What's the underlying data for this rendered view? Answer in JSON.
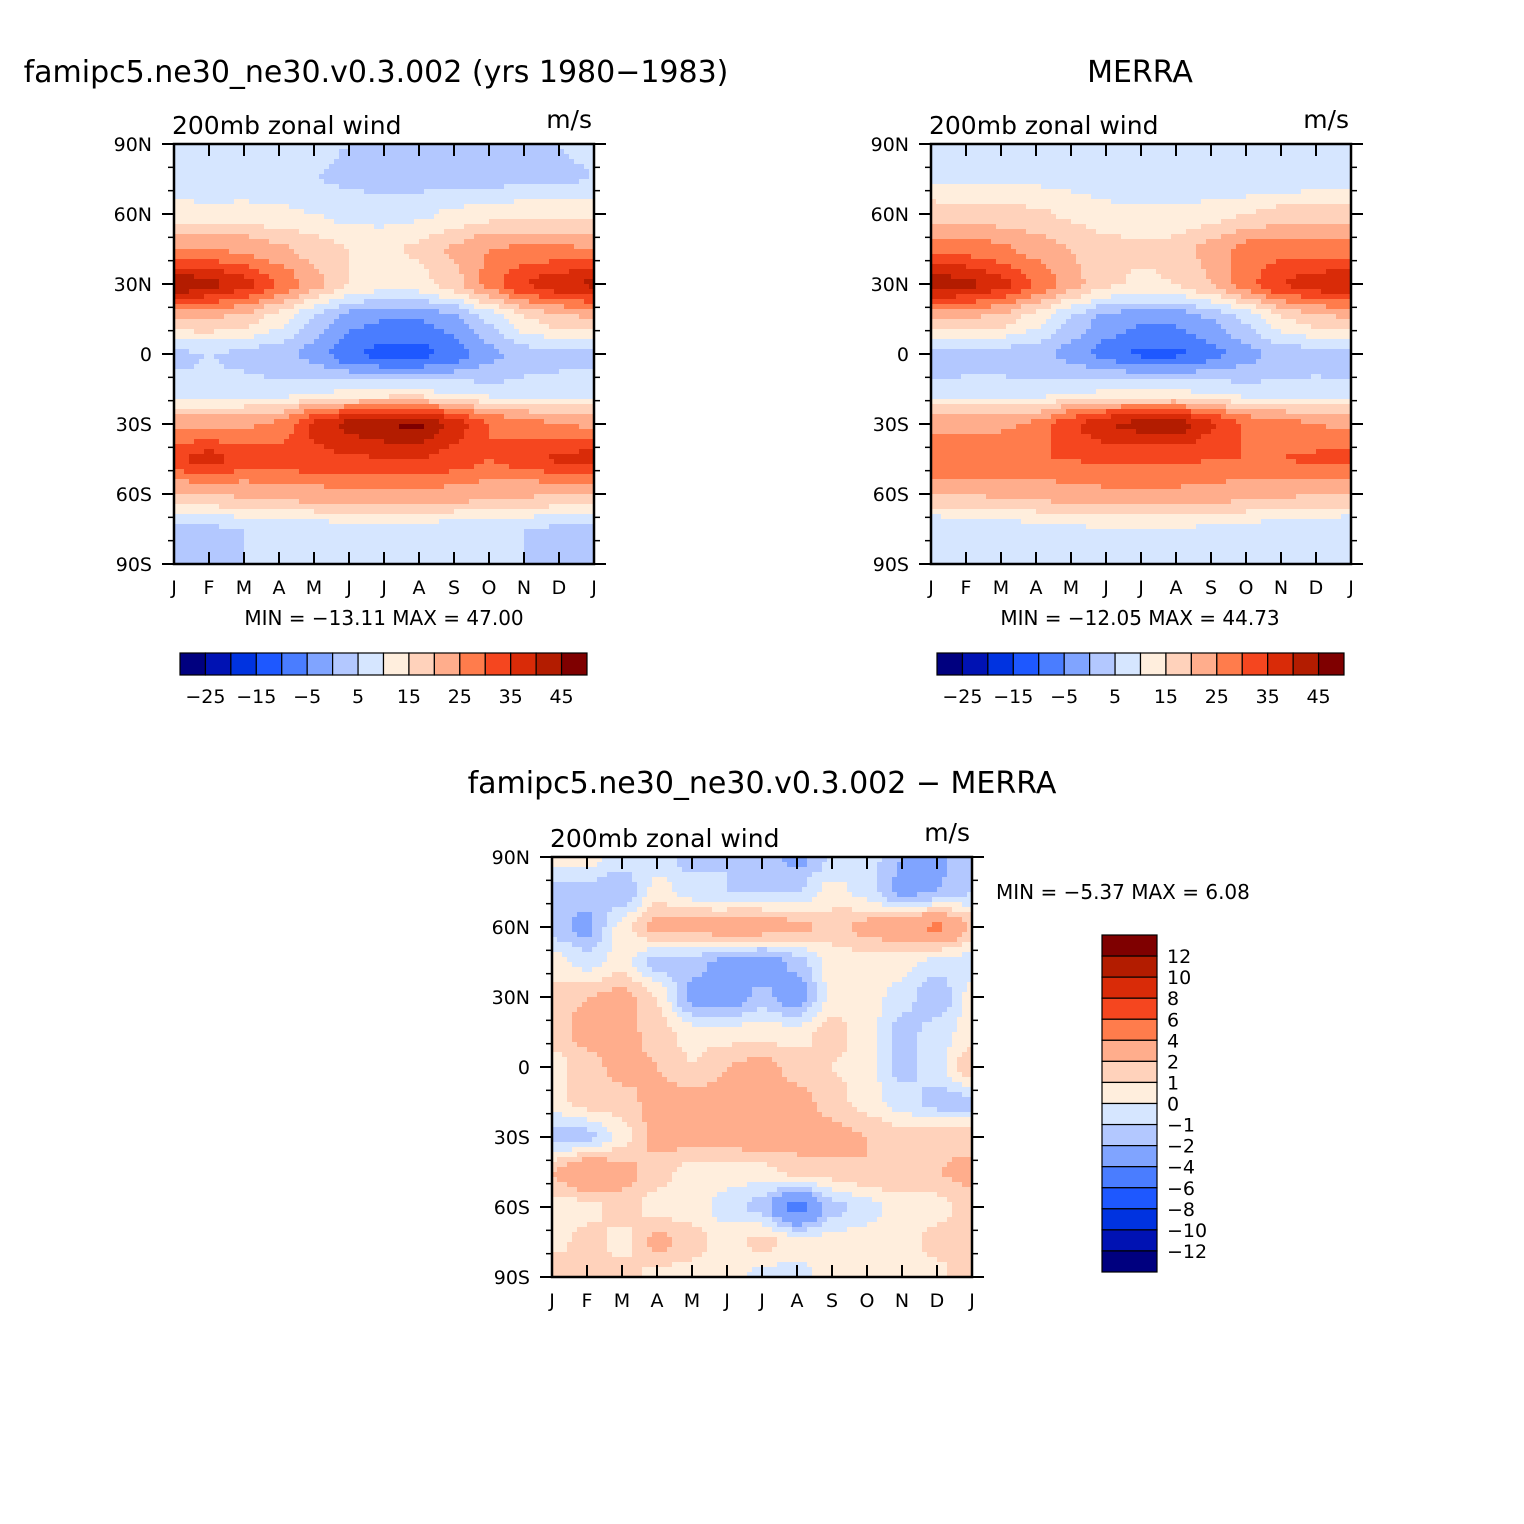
{
  "chart_data": [
    {
      "type": "heatmap",
      "id": "model",
      "title": "famipc5.ne30_ne30.v0.3.002 (yrs 1980-1983)",
      "left_string": "200mb zonal wind",
      "right_string": "m/s",
      "x_ticks": [
        "J",
        "F",
        "M",
        "A",
        "M",
        "J",
        "J",
        "A",
        "S",
        "O",
        "N",
        "D",
        "J"
      ],
      "y_ticks": [
        "90N",
        "60N",
        "30N",
        "0",
        "30S",
        "60S",
        "90S"
      ],
      "ylim": [
        -90,
        90
      ],
      "stats": "MIN = -13.11 MAX =   47.00",
      "colorbar": {
        "orientation": "horizontal",
        "labels": [
          "-25",
          "-15",
          "-5",
          "5",
          "15",
          "25",
          "35",
          "45"
        ]
      },
      "lat_nodes": [
        90,
        75,
        60,
        45,
        30,
        15,
        0,
        -15,
        -30,
        -45,
        -60,
        -75,
        -90
      ],
      "months": [
        "J",
        "F",
        "M",
        "A",
        "M",
        "J",
        "J",
        "A",
        "S",
        "O",
        "N",
        "D",
        "J"
      ],
      "values": [
        [
          6,
          6,
          6,
          6,
          6,
          5,
          5,
          5,
          5,
          5,
          5,
          5,
          6
        ],
        [
          5,
          5,
          6,
          6,
          5,
          4,
          3,
          3,
          3,
          3,
          4,
          4,
          5
        ],
        [
          13,
          12,
          12,
          11,
          10,
          8,
          8,
          9,
          11,
          13,
          13,
          13,
          13
        ],
        [
          25,
          25,
          24,
          21,
          18,
          15,
          14,
          16,
          21,
          25,
          26,
          26,
          25
        ],
        [
          45,
          42,
          37,
          30,
          22,
          15,
          12,
          13,
          18,
          27,
          35,
          39,
          41
        ],
        [
          20,
          20,
          18,
          12,
          4,
          -3,
          -5,
          -5,
          -2,
          6,
          14,
          18,
          20
        ],
        [
          4,
          5,
          4,
          2,
          -2,
          -9,
          -12,
          -12,
          -8,
          -2,
          3,
          4,
          4
        ],
        [
          6,
          6,
          6,
          6,
          8,
          9,
          9,
          9,
          8,
          6,
          6,
          6,
          6
        ],
        [
          24,
          23,
          24,
          26,
          36,
          42,
          45,
          46,
          38,
          30,
          27,
          25,
          24
        ],
        [
          34,
          38,
          33,
          33,
          34,
          34,
          35,
          35,
          33,
          30,
          33,
          36,
          38
        ],
        [
          20,
          20,
          21,
          22,
          23,
          24,
          24,
          24,
          23,
          22,
          21,
          20,
          20
        ],
        [
          3,
          4,
          5,
          6,
          7,
          8,
          8,
          8,
          7,
          6,
          5,
          4,
          3
        ],
        [
          5,
          5,
          5,
          5,
          5,
          5,
          5,
          5,
          5,
          5,
          5,
          5,
          5
        ]
      ]
    },
    {
      "type": "heatmap",
      "id": "obs",
      "title": "MERRA",
      "left_string": "200mb zonal wind",
      "right_string": "m/s",
      "x_ticks": [
        "J",
        "F",
        "M",
        "A",
        "M",
        "J",
        "J",
        "A",
        "S",
        "O",
        "N",
        "D",
        "J"
      ],
      "y_ticks": [
        "90N",
        "60N",
        "30N",
        "0",
        "30S",
        "60S",
        "90S"
      ],
      "ylim": [
        -90,
        90
      ],
      "stats": "MIN = -12.05 MAX =   44.73",
      "colorbar": {
        "orientation": "horizontal",
        "labels": [
          "-25",
          "-15",
          "-5",
          "5",
          "15",
          "25",
          "35",
          "45"
        ]
      },
      "lat_nodes": [
        90,
        75,
        60,
        45,
        30,
        15,
        0,
        -15,
        -30,
        -45,
        -60,
        -75,
        -90
      ],
      "months": [
        "J",
        "F",
        "M",
        "A",
        "M",
        "J",
        "J",
        "A",
        "S",
        "O",
        "N",
        "D",
        "J"
      ],
      "values": [
        [
          6,
          6,
          6,
          6,
          6,
          6,
          6,
          6,
          6,
          6,
          6,
          6,
          6
        ],
        [
          9,
          9,
          9,
          9,
          8,
          6,
          5,
          5,
          5,
          5,
          6,
          7,
          8
        ],
        [
          18,
          17,
          17,
          16,
          14,
          12,
          11,
          11,
          13,
          15,
          17,
          17,
          18
        ],
        [
          28,
          28,
          26,
          23,
          20,
          17,
          16,
          17,
          22,
          27,
          28,
          28,
          28
        ],
        [
          43,
          42,
          37,
          30,
          22,
          16,
          14,
          15,
          20,
          28,
          35,
          38,
          40
        ],
        [
          20,
          20,
          18,
          12,
          4,
          -2,
          -4,
          -4,
          0,
          6,
          14,
          18,
          20
        ],
        [
          2,
          3,
          3,
          2,
          -2,
          -7,
          -11,
          -11,
          -7,
          -2,
          2,
          3,
          2
        ],
        [
          6,
          6,
          6,
          6,
          8,
          9,
          9,
          9,
          8,
          6,
          6,
          6,
          6
        ],
        [
          24,
          24,
          24,
          26,
          34,
          40,
          42,
          43,
          36,
          29,
          27,
          25,
          24
        ],
        [
          30,
          30,
          30,
          30,
          30,
          31,
          31,
          31,
          30,
          30,
          30,
          31,
          32
        ],
        [
          20,
          20,
          21,
          22,
          23,
          24,
          24,
          24,
          23,
          22,
          21,
          20,
          20
        ],
        [
          5,
          6,
          7,
          8,
          9,
          10,
          10,
          10,
          9,
          8,
          7,
          6,
          5
        ],
        [
          5,
          5,
          5,
          5,
          5,
          5,
          5,
          5,
          5,
          5,
          5,
          5,
          5
        ]
      ]
    },
    {
      "type": "heatmap",
      "id": "diff",
      "title": "famipc5.ne30_ne30.v0.3.002 - MERRA",
      "left_string": "200mb zonal wind",
      "right_string": "m/s",
      "x_ticks": [
        "J",
        "F",
        "M",
        "A",
        "M",
        "J",
        "J",
        "A",
        "S",
        "O",
        "N",
        "D",
        "J"
      ],
      "y_ticks": [
        "90N",
        "60N",
        "30N",
        "0",
        "30S",
        "60S",
        "90S"
      ],
      "ylim": [
        -90,
        90
      ],
      "stats": "MIN =   -5.37 MAX =    6.08",
      "colorbar": {
        "orientation": "vertical",
        "labels": [
          "12",
          "10",
          "8",
          "6",
          "4",
          "2",
          "1",
          "0",
          "-1",
          "-2",
          "-4",
          "-6",
          "-8",
          "-10",
          "-12"
        ]
      },
      "lat_nodes": [
        90,
        75,
        60,
        45,
        30,
        15,
        0,
        -15,
        -30,
        -45,
        -60,
        -75,
        -90
      ],
      "months": [
        "J",
        "F",
        "M",
        "A",
        "M",
        "J",
        "J",
        "A",
        "S",
        "O",
        "N",
        "D",
        "J"
      ],
      "values": [
        [
          0.5,
          0.5,
          -0.5,
          -0.5,
          -1.5,
          -1,
          -1.5,
          -2.5,
          -1,
          -0.5,
          -2,
          -2.5,
          -1
        ],
        [
          -1.5,
          -1.5,
          -2,
          0.5,
          -0.5,
          -1,
          -1,
          -1,
          0.5,
          -0.5,
          -2.5,
          -2,
          -1
        ],
        [
          -1.5,
          -2.5,
          0.5,
          2.5,
          2.5,
          3,
          3,
          2.5,
          1.5,
          2.5,
          3,
          4.5,
          2
        ],
        [
          0.5,
          -0.5,
          0.5,
          -1.5,
          -1.5,
          -2.5,
          -3,
          -1.5,
          0.5,
          0.5,
          0.5,
          -0.5,
          -0.5
        ],
        [
          1.5,
          2,
          2.5,
          1,
          -2.5,
          -3,
          -1.5,
          -3,
          0.5,
          0.5,
          -0.5,
          -2,
          0.5
        ],
        [
          1.5,
          2.5,
          2.5,
          1.5,
          0.5,
          0.5,
          0.5,
          0.5,
          1.5,
          0.5,
          -1.5,
          -0.5,
          0.5
        ],
        [
          0.5,
          1.5,
          2.5,
          2,
          1,
          2,
          2.5,
          1.5,
          1,
          0.5,
          -1.5,
          -0.5,
          2
        ],
        [
          0.5,
          1.5,
          1.5,
          2.5,
          2.5,
          2.5,
          2.5,
          2.5,
          1.5,
          0.5,
          -0.5,
          -1.5,
          -1.5
        ],
        [
          -1.5,
          -1.5,
          0.5,
          2.5,
          2.5,
          2.5,
          3,
          2.5,
          2.5,
          2,
          1.5,
          1.5,
          1.5
        ],
        [
          2,
          4,
          2.5,
          1.5,
          0.5,
          0.5,
          0.5,
          1.5,
          1.5,
          2,
          2,
          2,
          2.5
        ],
        [
          0.5,
          0.5,
          1.5,
          0.5,
          0.5,
          -0.5,
          -1.5,
          -5,
          -1.5,
          -0.5,
          0.5,
          0.5,
          1.5
        ],
        [
          0.5,
          1.5,
          0.5,
          2.5,
          1.5,
          0.5,
          1.5,
          0.5,
          0.5,
          0.5,
          0.5,
          1.5,
          1.5
        ],
        [
          2,
          1.5,
          1.5,
          0.5,
          0.5,
          0.5,
          -0.5,
          -0.5,
          0.5,
          0.5,
          0.5,
          0.5,
          2
        ]
      ]
    }
  ],
  "colors": {
    "full_scale": [
      "#00007f",
      "#0012b3",
      "#0033e0",
      "#1e58ff",
      "#4a7dff",
      "#80a4ff",
      "#b3c8ff",
      "#d6e6ff",
      "#ffeedd",
      "#ffd2bb",
      "#ffad8c",
      "#ff7c4c",
      "#f5461f",
      "#d92b08",
      "#b31c00",
      "#7f0000"
    ],
    "diff_scale": [
      "#00007f",
      "#0012b3",
      "#0033e0",
      "#1e58ff",
      "#4a7dff",
      "#80a4ff",
      "#b3c8ff",
      "#d6e6ff",
      "#ffeedd",
      "#ffd2bb",
      "#ffad8c",
      "#ff7c4c",
      "#f5461f",
      "#d92b08",
      "#b31c00",
      "#7f0000"
    ]
  }
}
